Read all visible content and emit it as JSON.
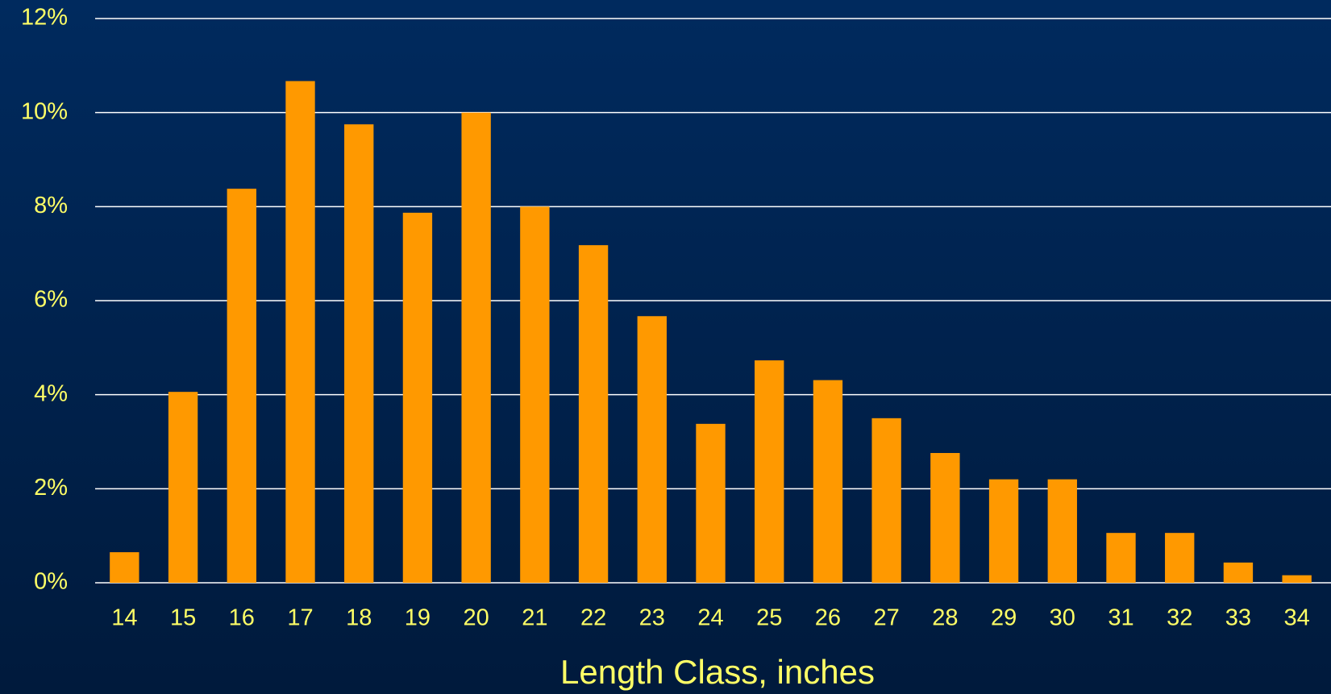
{
  "chart_data": {
    "type": "bar",
    "x_label": "Length Class, inches",
    "categories": [
      "14",
      "15",
      "16",
      "17",
      "18",
      "19",
      "20",
      "21",
      "22",
      "23",
      "24",
      "25",
      "26",
      "27",
      "28",
      "29",
      "30",
      "31",
      "32",
      "33",
      "34"
    ],
    "values": [
      0.65,
      4.06,
      8.38,
      10.67,
      9.75,
      7.87,
      10.0,
      8.0,
      7.18,
      5.67,
      3.38,
      4.73,
      4.31,
      3.5,
      2.76,
      2.2,
      2.2,
      1.06,
      1.06,
      0.43,
      0.16
    ],
    "color": "#ff9900",
    "ylim": [
      0,
      12
    ],
    "yticks": [
      {
        "value": 0,
        "label": "0%"
      },
      {
        "value": 2,
        "label": "2%"
      },
      {
        "value": 4,
        "label": "4%"
      },
      {
        "value": 6,
        "label": "6%"
      },
      {
        "value": 8,
        "label": "8%"
      },
      {
        "value": 10,
        "label": "10%"
      },
      {
        "value": 12,
        "label": "12%"
      }
    ],
    "grid": true
  }
}
